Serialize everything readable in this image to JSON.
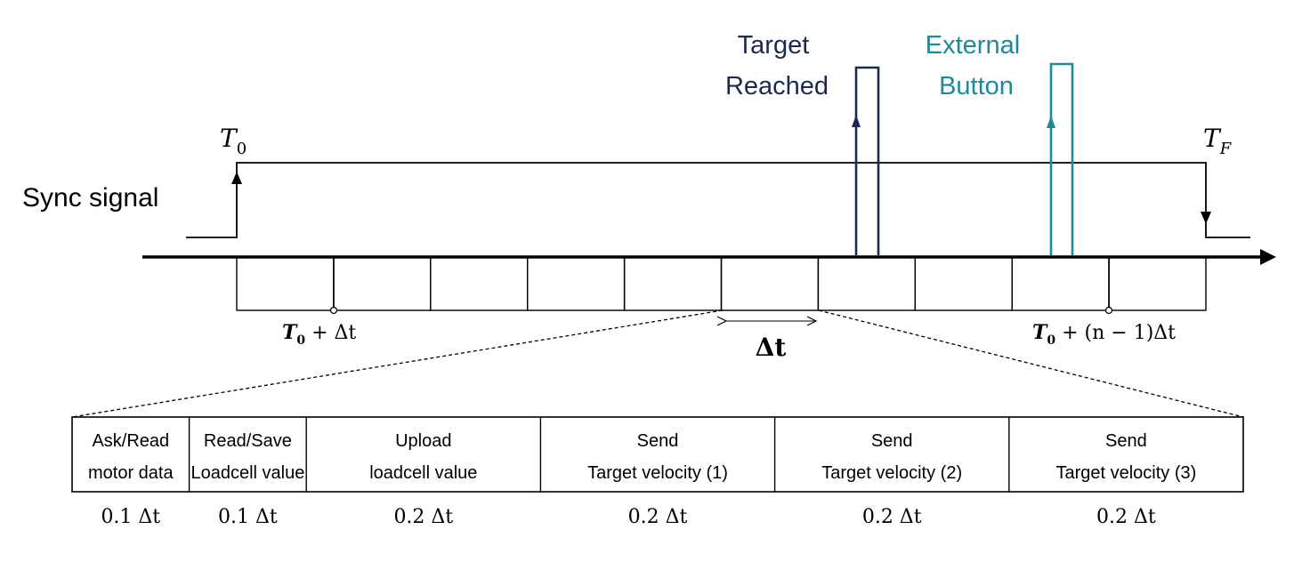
{
  "colors": {
    "line": "#000000",
    "target_reached": "#1b2a4e",
    "external_button": "#1a8a9c"
  },
  "sync": {
    "label": "Sync signal",
    "t0": "T",
    "t0_sub": "0",
    "tf": "T",
    "tf_sub": "F"
  },
  "pulses": {
    "target_line1": "Target",
    "target_line2": "Reached",
    "external_line1": "External",
    "external_line2": "Button"
  },
  "axis": {
    "slot_count": 10,
    "first_tick_T": "T",
    "first_tick_sub": "0",
    "first_tick_rest": " + Δt",
    "last_tick_T": "T",
    "last_tick_sub": "0",
    "last_tick_rest": " + (n − 1)Δt",
    "dt_label": "Δt"
  },
  "tasks": [
    {
      "line1": "Ask/Read",
      "line2": "motor data",
      "fraction": "0.1 Δt",
      "share": 0.1
    },
    {
      "line1": "Read/Save",
      "line2": "Loadcell value",
      "fraction": "0.1 Δt",
      "share": 0.1
    },
    {
      "line1": "Upload",
      "line2": "loadcell value",
      "fraction": "0.2 Δt",
      "share": 0.2
    },
    {
      "line1": "Send",
      "line2": "Target velocity (1)",
      "fraction": "0.2 Δt",
      "share": 0.2
    },
    {
      "line1": "Send",
      "line2": "Target velocity (2)",
      "fraction": "0.2 Δt",
      "share": 0.2
    },
    {
      "line1": "Send",
      "line2": "Target velocity (3)",
      "fraction": "0.2 Δt",
      "share": 0.2
    }
  ]
}
